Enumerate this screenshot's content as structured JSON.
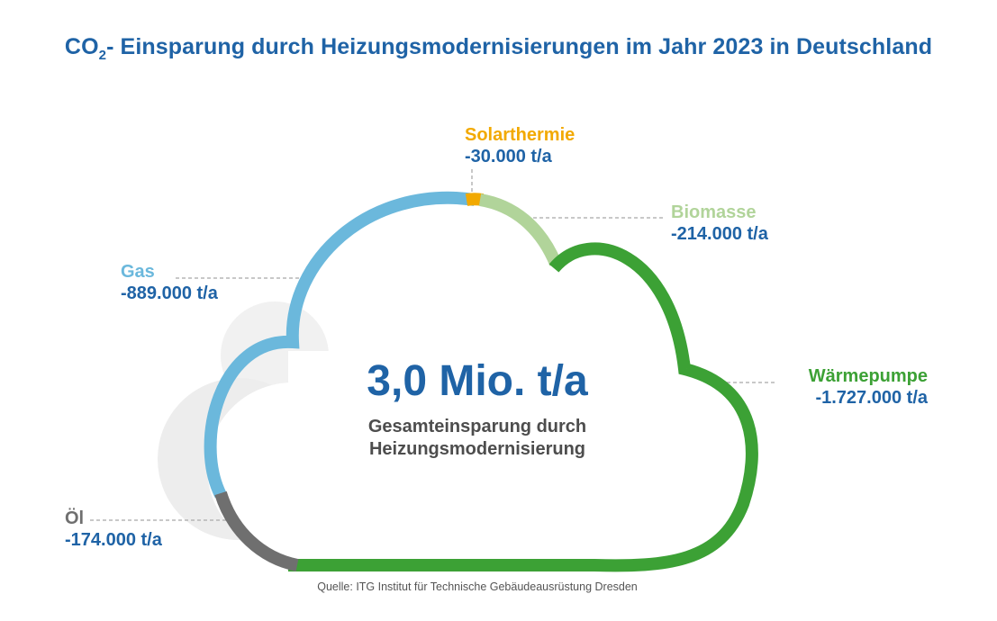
{
  "title": {
    "prefix": "CO",
    "subscript": "2",
    "rest": "- Einsparung durch Heizungsmodernisierungen im Jahr 2023 in Deutschland"
  },
  "total": {
    "value": "3,0 Mio. t/a",
    "caption_line1": "Gesamteinsparung durch",
    "caption_line2": "Heizungsmodernisierung"
  },
  "source": "Quelle: ITG Institut für Technische Gebäudeausrüstung Dresden",
  "chart_data": {
    "type": "pie",
    "style": "cloud-outline",
    "unit": "t/a",
    "slices": [
      {
        "name": "Solarthermie",
        "value": -30000,
        "label": "-30.000 t/a",
        "color": "#f2a900"
      },
      {
        "name": "Biomasse",
        "value": -214000,
        "label": "-214.000 t/a",
        "color": "#b1d49a"
      },
      {
        "name": "Wärmepumpe",
        "value": -1727000,
        "label": "-1.727.000 t/a",
        "color": "#3ca135"
      },
      {
        "name": "Öl",
        "value": -174000,
        "label": "-174.000 t/a",
        "color": "#6f6f6f"
      },
      {
        "name": "Gas",
        "value": -889000,
        "label": "-889.000 t/a",
        "color": "#6bb8dc"
      }
    ],
    "total_label": "3,0 Mio. t/a"
  }
}
